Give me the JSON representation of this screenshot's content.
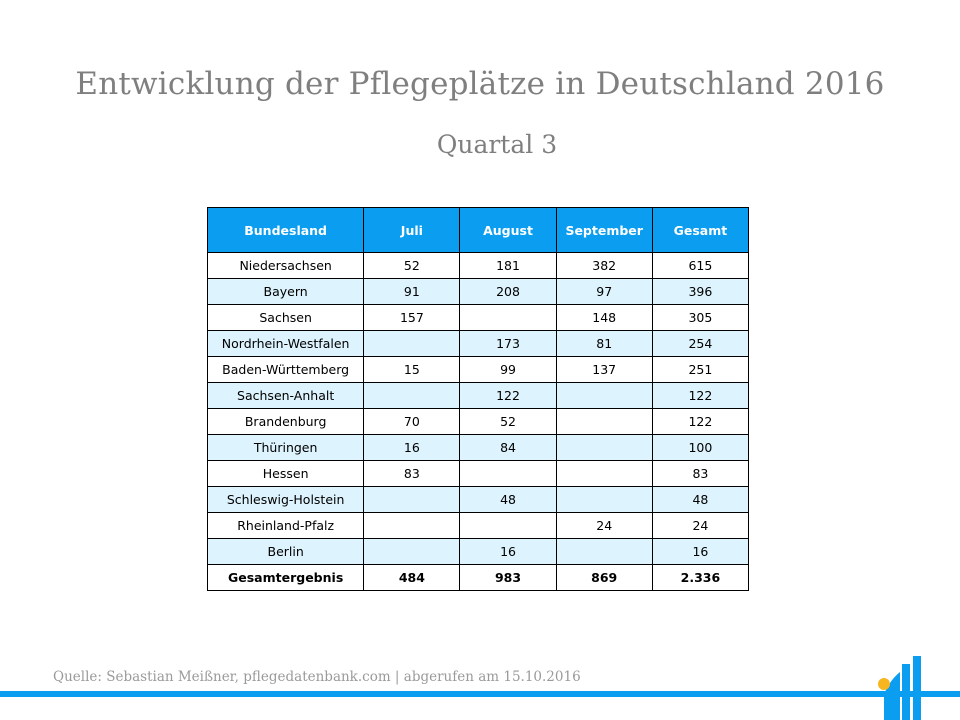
{
  "header": {
    "title": "Entwicklung der Pflegeplätze in Deutschland 2016",
    "subtitle": "Quartal 3"
  },
  "chart_data": {
    "type": "table",
    "columns": [
      "Bundesland",
      "Juli",
      "August",
      "September",
      "Gesamt"
    ],
    "rows": [
      [
        "Niedersachsen",
        "52",
        "181",
        "382",
        "615"
      ],
      [
        "Bayern",
        "91",
        "208",
        "97",
        "396"
      ],
      [
        "Sachsen",
        "157",
        "",
        "148",
        "305"
      ],
      [
        "Nordrhein-Westfalen",
        "",
        "173",
        "81",
        "254"
      ],
      [
        "Baden-Württemberg",
        "15",
        "99",
        "137",
        "251"
      ],
      [
        "Sachsen-Anhalt",
        "",
        "122",
        "",
        "122"
      ],
      [
        "Brandenburg",
        "70",
        "52",
        "",
        "122"
      ],
      [
        "Thüringen",
        "16",
        "84",
        "",
        "100"
      ],
      [
        "Hessen",
        "83",
        "",
        "",
        "83"
      ],
      [
        "Schleswig-Holstein",
        "",
        "48",
        "",
        "48"
      ],
      [
        "Rheinland-Pfalz",
        "",
        "",
        "24",
        "24"
      ],
      [
        "Berlin",
        "",
        "16",
        "",
        "16"
      ]
    ],
    "total": [
      "Gesamtergebnis",
      "484",
      "983",
      "869",
      "2.336"
    ]
  },
  "footer": {
    "source": "Quelle: Sebastian Meißner, pflegedatenbank.com | abgerufen am 15.10.2016"
  },
  "colors": {
    "header_blue": "#0a9df0",
    "row_alt": "#ddf3fd",
    "title_gray": "#7f7f7f",
    "logo_orange": "#f7b520"
  },
  "logo": {
    "icon": "bar-chart-logo-icon"
  }
}
